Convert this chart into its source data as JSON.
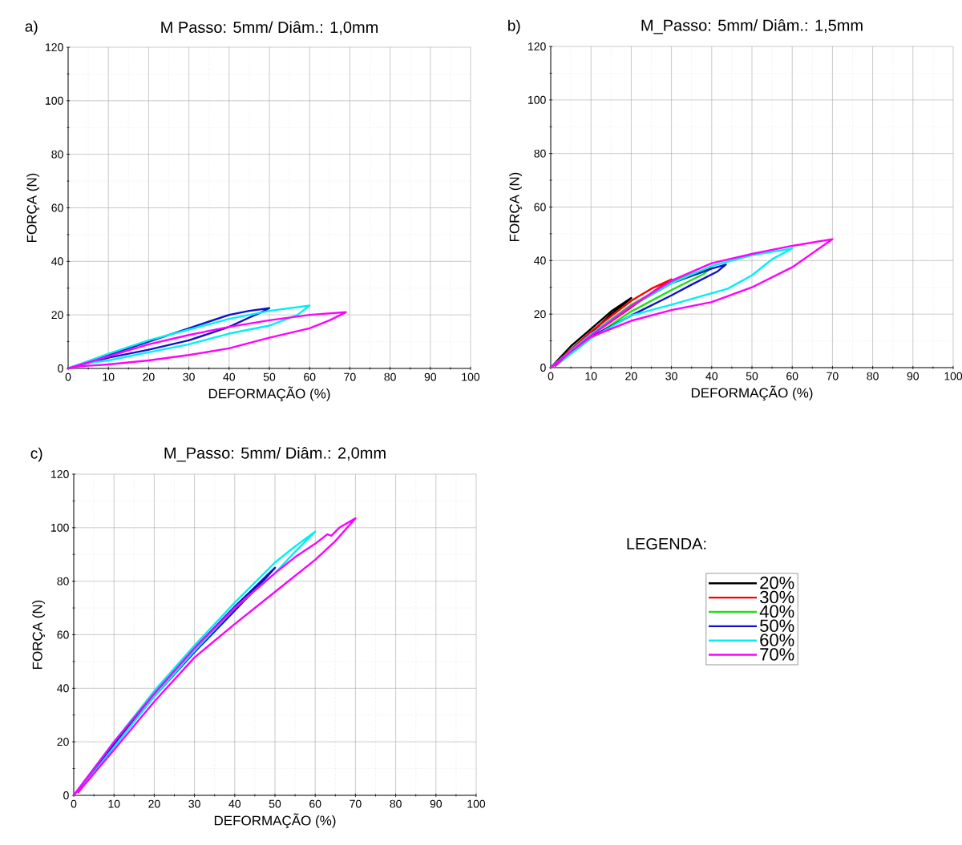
{
  "chart_data": [
    {
      "type": "line",
      "title": "M Passo: 5mm/ Diâm.: 1,0mm",
      "xlabel": "DEFORMAÇÃO (%)",
      "ylabel": "FORÇA (N)",
      "annotations": [
        "a)"
      ],
      "xlim": [
        0,
        100
      ],
      "ylim": [
        0,
        120
      ],
      "xticks": [
        0,
        10,
        20,
        30,
        40,
        50,
        60,
        70,
        80,
        90,
        100
      ],
      "yticks": [
        0,
        20,
        40,
        60,
        80,
        100,
        120
      ],
      "grid": true,
      "series": [
        {
          "color": "#1010c8",
          "x": [
            0,
            20,
            30,
            35,
            40,
            45,
            50,
            48,
            45,
            40,
            35,
            30,
            20,
            10,
            5,
            1
          ],
          "values": [
            0,
            10,
            15,
            17.5,
            20,
            21.5,
            22.5,
            21,
            19,
            15.5,
            13,
            10.5,
            7,
            4,
            2,
            0.5
          ]
        },
        {
          "color": "#00f0f0",
          "x": [
            0,
            10,
            20,
            30,
            40,
            50,
            55,
            60,
            57,
            50,
            40,
            30,
            20,
            10,
            5,
            1
          ],
          "values": [
            0,
            5.5,
            10.5,
            14.5,
            18.5,
            21.5,
            22.5,
            23.5,
            20,
            16,
            13,
            9,
            6,
            3,
            2,
            0.5
          ]
        },
        {
          "color": "#ff00ff",
          "x": [
            0,
            20,
            30,
            40,
            50,
            60,
            69,
            65,
            60,
            50,
            40,
            30,
            20,
            10,
            5,
            1
          ],
          "values": [
            0,
            9,
            12.5,
            15.5,
            18,
            20,
            21,
            18,
            15,
            11.5,
            7.5,
            5,
            3,
            1.5,
            1,
            0.5
          ]
        }
      ]
    },
    {
      "type": "line",
      "title": "M_Passo: 5mm/ Diâm.: 1,5mm",
      "xlabel": "DEFORMAÇÃO (%)",
      "ylabel": "FORÇA (N)",
      "annotations": [
        "b)"
      ],
      "xlim": [
        0,
        100
      ],
      "ylim": [
        0,
        120
      ],
      "xticks": [
        0,
        10,
        20,
        30,
        40,
        50,
        60,
        70,
        80,
        90,
        100
      ],
      "yticks": [
        0,
        20,
        40,
        60,
        80,
        100,
        120
      ],
      "grid": true,
      "legend": "bottom",
      "legend_title": "LEGENDA:",
      "series": [
        {
          "name": "20%",
          "color": "#000000",
          "x": [
            0,
            5,
            10,
            15,
            20,
            18,
            15,
            10,
            5,
            1
          ],
          "values": [
            0,
            8,
            14.5,
            21,
            26,
            23.5,
            20,
            13,
            6.5,
            0.5
          ]
        },
        {
          "name": "30%",
          "color": "#ff0000",
          "x": [
            0,
            10,
            20,
            25,
            30,
            27,
            20,
            10,
            1
          ],
          "values": [
            0,
            13.5,
            25,
            29.5,
            33,
            30,
            22.5,
            12,
            0.5
          ]
        },
        {
          "name": "40%",
          "color": "#22dd22",
          "x": [
            0,
            10,
            20,
            30,
            35,
            40,
            38,
            30,
            20,
            10,
            1
          ],
          "values": [
            0,
            12.5,
            23.5,
            32,
            35,
            37.5,
            35,
            29,
            21,
            11,
            0.5
          ]
        },
        {
          "name": "50%",
          "color": "#1010c8",
          "x": [
            0,
            10,
            20,
            30,
            40,
            43.5,
            41.5,
            35,
            30,
            20,
            10,
            5,
            1
          ],
          "values": [
            0,
            12.5,
            23,
            31.5,
            37,
            38.5,
            36,
            31,
            27,
            19.5,
            11.5,
            6,
            0.5
          ]
        },
        {
          "name": "60%",
          "color": "#00f0f0",
          "x": [
            0,
            10,
            20,
            30,
            40,
            50,
            60,
            55,
            50,
            44,
            30,
            25,
            20,
            10,
            1
          ],
          "values": [
            0,
            12.5,
            23,
            31.5,
            38,
            42,
            44.5,
            40.5,
            34.5,
            29.5,
            23.5,
            21.5,
            19.5,
            11,
            0.5
          ]
        },
        {
          "name": "70%",
          "color": "#ff00ff",
          "x": [
            0,
            10,
            20,
            30,
            40,
            50,
            60,
            70,
            60,
            50,
            40,
            30,
            20,
            10,
            4.5,
            1
          ],
          "values": [
            0,
            12,
            23,
            32.5,
            39,
            42.5,
            45.5,
            48,
            37.5,
            30,
            24.5,
            21.5,
            17.5,
            11.5,
            5.5,
            0.5
          ]
        }
      ]
    },
    {
      "type": "line",
      "title": "M_Passo: 5mm/ Diâm.: 2,0mm",
      "xlabel": "DEFORMAÇÃO (%)",
      "ylabel": "FORÇA (N)",
      "annotations": [
        "c)"
      ],
      "xlim": [
        0,
        100
      ],
      "ylim": [
        0,
        120
      ],
      "xticks": [
        0,
        10,
        20,
        30,
        40,
        50,
        60,
        70,
        80,
        90,
        100
      ],
      "yticks": [
        0,
        20,
        40,
        60,
        80,
        100,
        120
      ],
      "grid": true,
      "series": [
        {
          "color": "#1010c8",
          "x": [
            0,
            10,
            20,
            30,
            40,
            50,
            47,
            40,
            30,
            20,
            10,
            1
          ],
          "values": [
            0,
            19.5,
            38,
            55,
            70.5,
            85,
            80,
            69,
            53.5,
            37,
            18.5,
            1
          ]
        },
        {
          "color": "#00f0f0",
          "x": [
            0,
            10,
            20,
            30,
            40,
            50,
            55,
            60,
            55,
            50,
            40,
            30,
            20,
            10,
            1
          ],
          "values": [
            0,
            20,
            39,
            56,
            72,
            87,
            93,
            98.5,
            91,
            83,
            70,
            54,
            37,
            18,
            1
          ]
        },
        {
          "color": "#ff00ff",
          "x": [
            0,
            10,
            20,
            30,
            40,
            50,
            55,
            60,
            63,
            64,
            66,
            70,
            65,
            60,
            50,
            40,
            30,
            20,
            10,
            1
          ],
          "values": [
            0,
            20,
            38,
            55,
            70,
            83,
            89,
            94,
            97.5,
            97,
            100,
            103.5,
            95,
            88,
            76,
            64,
            51.5,
            35,
            17,
            1
          ]
        }
      ]
    }
  ]
}
